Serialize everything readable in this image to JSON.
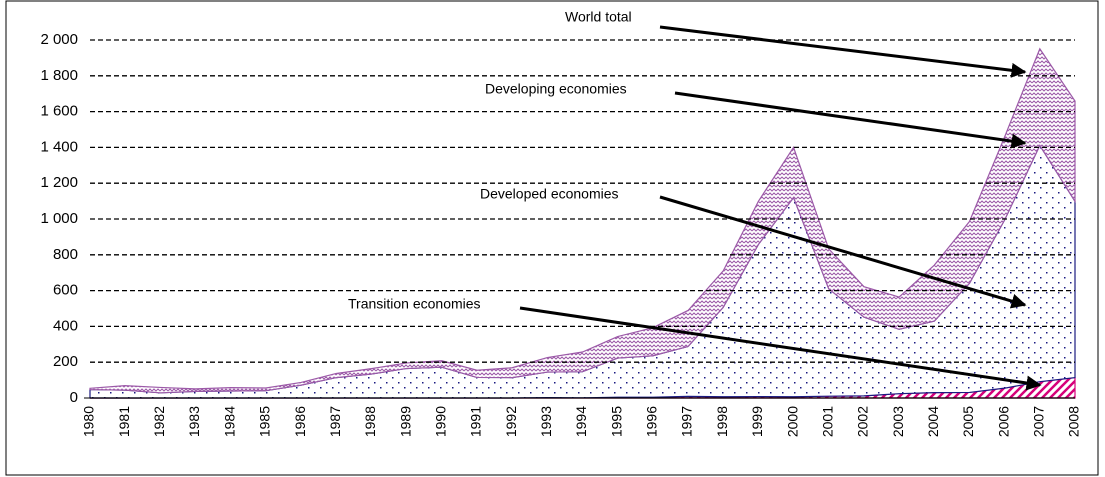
{
  "chart_data": {
    "type": "stacked_area",
    "categories": [
      "1980",
      "1981",
      "1982",
      "1983",
      "1984",
      "1985",
      "1986",
      "1987",
      "1988",
      "1989",
      "1990",
      "1991",
      "1992",
      "1993",
      "1994",
      "1995",
      "1996",
      "1997",
      "1998",
      "1999",
      "2000",
      "2001",
      "2002",
      "2003",
      "2004",
      "2005",
      "2006",
      "2007",
      "2008"
    ],
    "series": [
      {
        "name": "Transition economies",
        "color": "#d6007a",
        "pattern": "hatch",
        "values": [
          0,
          0,
          0,
          0,
          0,
          0,
          0,
          0,
          0,
          0,
          0,
          0,
          0,
          2,
          1,
          4,
          4,
          9,
          7,
          8,
          7,
          10,
          12,
          24,
          30,
          31,
          55,
          91,
          114
        ]
      },
      {
        "name": "Developed economies",
        "color": "#1a1a80",
        "pattern": "dots",
        "values": [
          47,
          44,
          29,
          37,
          39,
          41,
          72,
          114,
          134,
          165,
          172,
          115,
          114,
          143,
          146,
          219,
          232,
          279,
          500,
          850,
          1113,
          600,
          440,
          360,
          400,
          610,
          940,
          1320,
          985
        ]
      },
      {
        "name": "Developing economies",
        "color": "#9c5aa8",
        "pattern": "wave",
        "values": [
          7,
          25,
          30,
          14,
          19,
          15,
          15,
          23,
          30,
          31,
          36,
          40,
          55,
          81,
          110,
          120,
          157,
          201,
          203,
          241,
          280,
          223,
          170,
          180,
          312,
          345,
          464,
          540,
          560
        ]
      }
    ],
    "annotations": [
      "World total",
      "Developing economies",
      "Developed economies",
      "Transition economies"
    ],
    "ylim": [
      0,
      2000
    ],
    "yticks": [
      0,
      {
        "value": 200,
        "label": "200"
      },
      {
        "value": 400,
        "label": "400"
      },
      {
        "value": 600,
        "label": "600"
      },
      {
        "value": 800,
        "label": "800"
      },
      {
        "value": 1000,
        "label": "1 000"
      },
      {
        "value": 1200,
        "label": "1 200"
      },
      {
        "value": 1400,
        "label": "1 400"
      },
      {
        "value": 1600,
        "label": "1 600"
      },
      {
        "value": 1800,
        "label": "1 800"
      },
      {
        "value": 2000,
        "label": "2 000"
      }
    ],
    "grid": true
  }
}
